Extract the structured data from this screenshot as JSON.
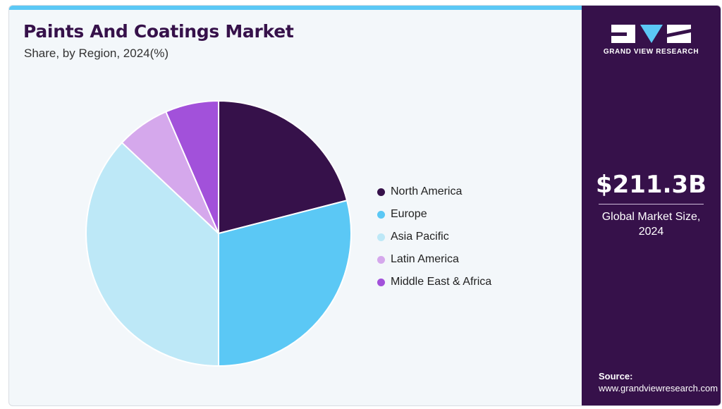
{
  "header": {
    "title": "Paints And Coatings Market",
    "subtitle": "Share, by Region, 2024(%)"
  },
  "chart_data": {
    "type": "pie",
    "categories": [
      "North America",
      "Europe",
      "Asia Pacific",
      "Latin America",
      "Middle East & Africa"
    ],
    "values": [
      21,
      29,
      37,
      6.5,
      6.5
    ],
    "colors": [
      "#36114a",
      "#5bc8f5",
      "#bde8f7",
      "#d5a8ec",
      "#a251da"
    ],
    "legend_position": "right"
  },
  "side_panel": {
    "brand": "GRAND VIEW RESEARCH",
    "market_size": "$211.3B",
    "market_size_label_line1": "Global Market Size,",
    "market_size_label_line2": "2024",
    "source_label": "Source:",
    "source_url": "www.grandviewresearch.com",
    "colors": {
      "panel": "#36114a",
      "logo_blue": "#5bc8f5"
    }
  }
}
